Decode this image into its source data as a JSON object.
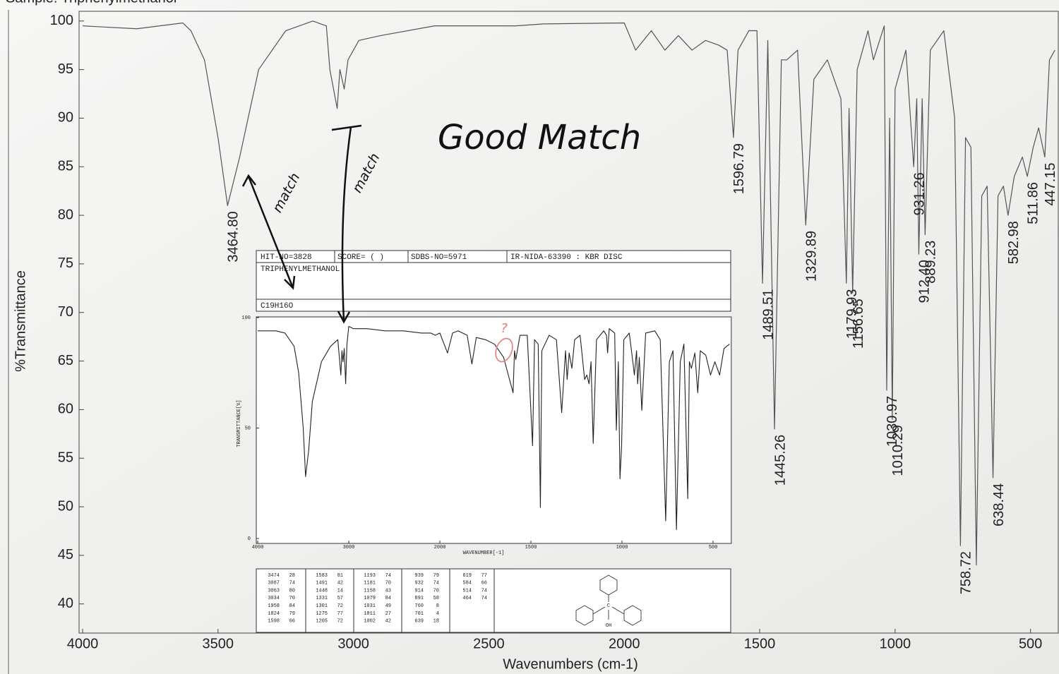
{
  "chart_data": [
    {
      "type": "line",
      "title": "Sample: Triphenylmethanol",
      "x_label": "Wavenumbers (cm-1)",
      "y_label": "%Transmittance",
      "xlim": [
        4000,
        400
      ],
      "ylim": [
        37,
        101
      ],
      "xticks": [
        4000,
        3500,
        3000,
        2500,
        2000,
        1500,
        1000,
        500
      ],
      "yticks": [
        40,
        45,
        50,
        55,
        60,
        65,
        70,
        75,
        80,
        85,
        90,
        95,
        100
      ],
      "x": [
        4000,
        3800,
        3630,
        3600,
        3550,
        3500,
        3464.8,
        3420,
        3350,
        3250,
        3150,
        3100,
        3087,
        3060,
        3050,
        3034,
        3020,
        2980,
        2900,
        2700,
        2400,
        2300,
        2000,
        1958,
        1900,
        1850,
        1800,
        1750,
        1700,
        1650,
        1620,
        1596.79,
        1580,
        1540,
        1510,
        1489.51,
        1470,
        1445.26,
        1420,
        1400,
        1360,
        1329.89,
        1300,
        1250,
        1200,
        1179.93,
        1170,
        1156.65,
        1140,
        1100,
        1080,
        1040,
        1030.97,
        1020,
        1010.29,
        1000,
        960,
        931.26,
        920,
        912.4,
        900,
        889.23,
        870,
        820,
        780,
        758.72,
        740,
        720,
        700,
        680,
        660,
        638.44,
        620,
        600,
        582.98,
        560,
        530,
        511.86,
        490,
        470,
        447.15,
        430,
        410
      ],
      "series": [
        {
          "color": "#555555",
          "values": [
            99.5,
            99.2,
            99.8,
            99,
            96,
            88,
            81,
            86,
            95,
            99,
            100,
            99.5,
            95,
            91,
            95,
            93,
            96,
            98,
            98.5,
            99.5,
            99.5,
            99.7,
            99.8,
            97,
            99,
            97,
            98.5,
            97,
            98,
            97.5,
            97,
            88,
            97,
            99,
            99,
            73,
            98,
            58,
            96,
            96,
            97,
            79,
            94,
            96,
            92,
            73,
            91,
            72,
            95,
            99,
            96,
            99.5,
            62,
            90,
            59,
            93,
            97,
            85,
            92,
            76,
            92,
            78,
            97,
            99,
            90,
            46,
            88,
            87,
            44,
            82,
            83,
            53,
            82,
            83,
            80,
            84,
            86,
            84,
            87,
            89,
            86,
            96,
            97
          ]
        }
      ],
      "peaks": [
        {
          "value": 3464.8,
          "label": "3464.80"
        },
        {
          "value": 1596.79,
          "label": "1596.79"
        },
        {
          "value": 1489.51,
          "label": "1489.51"
        },
        {
          "value": 1445.26,
          "label": "1445.26"
        },
        {
          "value": 1329.89,
          "label": "1329.89"
        },
        {
          "value": 1179.93,
          "label": "1179.93"
        },
        {
          "value": 1156.65,
          "label": "1156.65"
        },
        {
          "value": 1030.97,
          "label": "1030.97"
        },
        {
          "value": 1010.29,
          "label": "1010.29"
        },
        {
          "value": 931.26,
          "label": "931.26"
        },
        {
          "value": 912.4,
          "label": "912.40"
        },
        {
          "value": 889.23,
          "label": "889.23"
        },
        {
          "value": 758.72,
          "label": "758.72"
        },
        {
          "value": 638.44,
          "label": "638.44"
        },
        {
          "value": 582.98,
          "label": "582.98"
        },
        {
          "value": 511.86,
          "label": "511.86"
        },
        {
          "value": 447.15,
          "label": "447.15"
        }
      ],
      "annotations": [
        "Good Match",
        "match",
        "match",
        "?"
      ]
    },
    {
      "type": "line",
      "header": [
        "HIT-NO=3828",
        "SCORE=  (    )",
        "SDBS-NO=5971",
        "IR-NIDA-63390 : KBR DISC"
      ],
      "title": "TRIPHENYLMETHANOL",
      "formula": "C19H16O",
      "x_label": "WAVENUMBER[-1]",
      "y_label": "TRANSMITTANCE[%]",
      "xlim": [
        4000,
        400
      ],
      "ylim": [
        0,
        100
      ],
      "xticks": [
        4000,
        3000,
        2000,
        1500,
        1000,
        500
      ],
      "yticks": [
        0,
        50,
        100
      ],
      "x": [
        4000,
        3800,
        3700,
        3600,
        3550,
        3500,
        3474,
        3440,
        3400,
        3300,
        3200,
        3120,
        3087,
        3075,
        3063,
        3050,
        3034,
        3020,
        3000,
        2950,
        2800,
        2600,
        2400,
        2200,
        2100,
        2050,
        2000,
        1958,
        1930,
        1900,
        1850,
        1824,
        1800,
        1750,
        1700,
        1650,
        1598,
        1590,
        1583,
        1560,
        1520,
        1491,
        1480,
        1460,
        1448,
        1440,
        1400,
        1360,
        1331,
        1310,
        1301,
        1290,
        1275,
        1260,
        1230,
        1205,
        1193,
        1181,
        1170,
        1158,
        1140,
        1100,
        1085,
        1079,
        1070,
        1040,
        1031,
        1020,
        1011,
        1002,
        990,
        960,
        939,
        932,
        920,
        914,
        905,
        891,
        870,
        820,
        790,
        760,
        740,
        720,
        701,
        680,
        660,
        639,
        630,
        619,
        600,
        584,
        570,
        540,
        514,
        490,
        464,
        440,
        410
      ],
      "series": [
        {
          "color": "#222222",
          "values": [
            94,
            94,
            93,
            87,
            75,
            50,
            28,
            40,
            62,
            80,
            87,
            90,
            74,
            85,
            80,
            86,
            70,
            88,
            96,
            95,
            95,
            94,
            94,
            93,
            93,
            92,
            93,
            84,
            93,
            94,
            92,
            79,
            91,
            90,
            88,
            82,
            66,
            85,
            81,
            92,
            92,
            42,
            90,
            88,
            14,
            85,
            92,
            90,
            57,
            85,
            72,
            84,
            77,
            90,
            92,
            72,
            74,
            70,
            80,
            43,
            90,
            94,
            92,
            84,
            95,
            93,
            49,
            80,
            27,
            42,
            90,
            93,
            79,
            74,
            85,
            70,
            82,
            58,
            93,
            94,
            90,
            8,
            80,
            85,
            4,
            80,
            88,
            18,
            80,
            77,
            84,
            66,
            85,
            83,
            74,
            80,
            74,
            86,
            88
          ]
        }
      ],
      "peak_table": [
        [
          3474,
          28
        ],
        [
          3087,
          74
        ],
        [
          3063,
          80
        ],
        [
          3034,
          70
        ],
        [
          1958,
          84
        ],
        [
          1824,
          79
        ],
        [
          1598,
          66
        ],
        [
          1583,
          81
        ],
        [
          1491,
          42
        ],
        [
          1448,
          14
        ],
        [
          1331,
          57
        ],
        [
          1301,
          72
        ],
        [
          1275,
          77
        ],
        [
          1205,
          72
        ],
        [
          1193,
          74
        ],
        [
          1181,
          70
        ],
        [
          1158,
          43
        ],
        [
          1079,
          84
        ],
        [
          1031,
          49
        ],
        [
          1011,
          27
        ],
        [
          1002,
          42
        ],
        [
          939,
          79
        ],
        [
          932,
          74
        ],
        [
          914,
          70
        ],
        [
          891,
          58
        ],
        [
          760,
          8
        ],
        [
          701,
          4
        ],
        [
          639,
          18
        ],
        [
          619,
          77
        ],
        [
          584,
          66
        ],
        [
          514,
          74
        ],
        [
          464,
          74
        ]
      ],
      "structure_atoms": [
        "C",
        "OH"
      ]
    }
  ]
}
